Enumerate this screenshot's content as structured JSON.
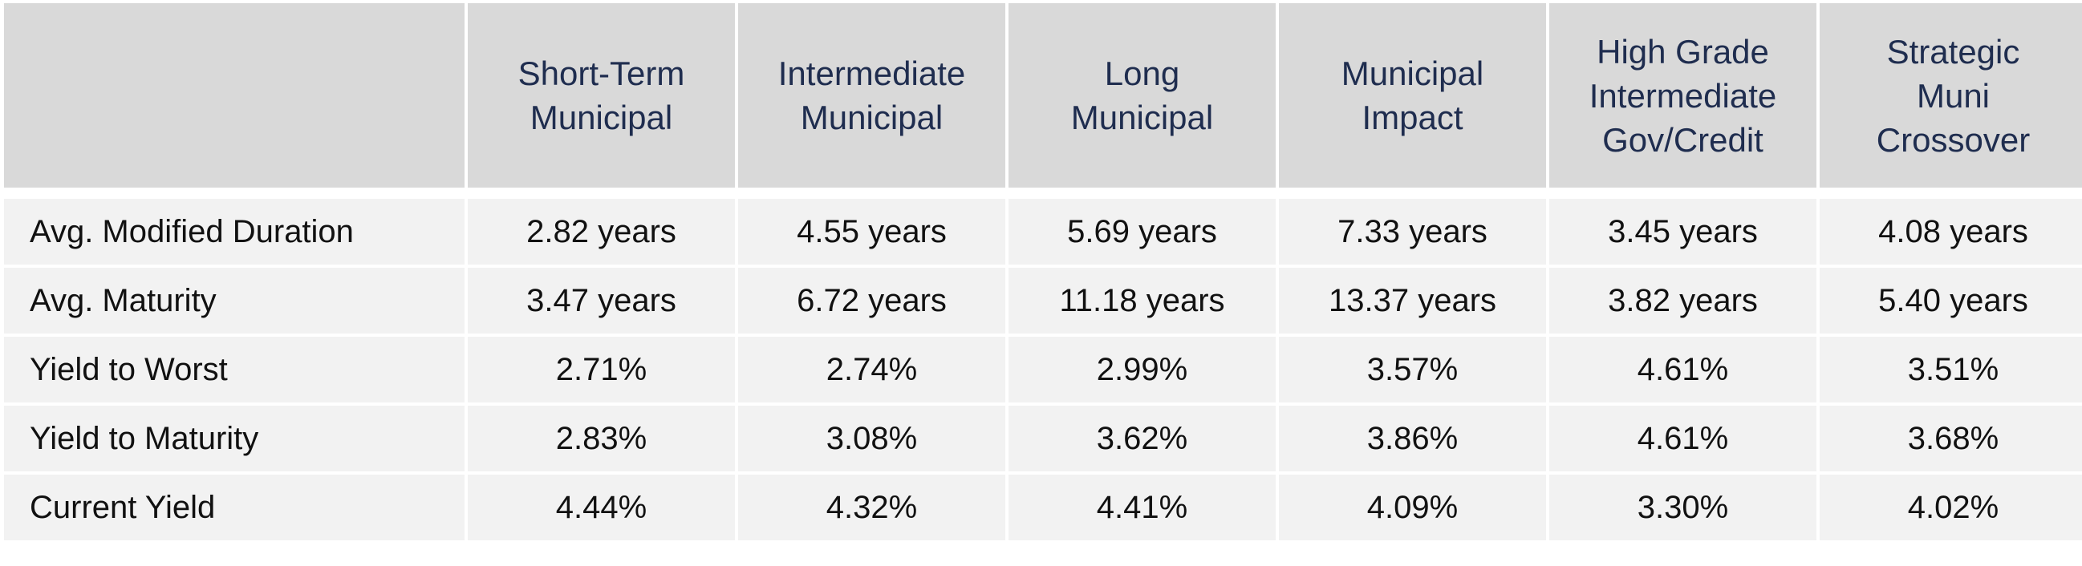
{
  "table": {
    "columns": [
      {
        "lines": [
          "Short-Term",
          "Municipal"
        ]
      },
      {
        "lines": [
          "Intermediate",
          "Municipal"
        ]
      },
      {
        "lines": [
          "Long",
          "Municipal"
        ]
      },
      {
        "lines": [
          "Municipal",
          "Impact"
        ]
      },
      {
        "lines": [
          "High Grade",
          "Intermediate",
          "Gov/Credit"
        ]
      },
      {
        "lines": [
          "Strategic",
          "Muni",
          "Crossover"
        ]
      }
    ],
    "rows": [
      {
        "label": "Avg. Modified Duration",
        "values": [
          "2.82 years",
          "4.55 years",
          "5.69 years",
          "7.33 years",
          "3.45 years",
          "4.08 years"
        ]
      },
      {
        "label": "Avg. Maturity",
        "values": [
          "3.47 years",
          "6.72 years",
          "11.18 years",
          "13.37 years",
          "3.82 years",
          "5.40 years"
        ]
      },
      {
        "label": "Yield to Worst",
        "values": [
          "2.71%",
          "2.74%",
          "2.99%",
          "3.57%",
          "4.61%",
          "3.51%"
        ]
      },
      {
        "label": "Yield to Maturity",
        "values": [
          "2.83%",
          "3.08%",
          "3.62%",
          "3.86%",
          "4.61%",
          "3.68%"
        ]
      },
      {
        "label": "Current Yield",
        "values": [
          "4.44%",
          "4.32%",
          "4.41%",
          "4.09%",
          "3.30%",
          "4.02%"
        ]
      }
    ]
  },
  "colors": {
    "header_bg": "#d9d9d9",
    "header_text": "#1f2d4f",
    "row_bg": "#f2f2f2",
    "body_text": "#111111"
  }
}
